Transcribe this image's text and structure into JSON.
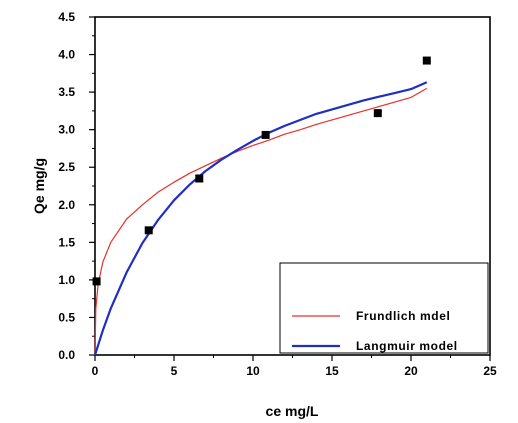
{
  "chart_data": {
    "type": "scatter",
    "xlabel": "ce mg/L",
    "ylabel": "Qe mg/g",
    "xlim": [
      0,
      25
    ],
    "ylim": [
      0,
      4.5
    ],
    "xticks": [
      0,
      5,
      10,
      15,
      20,
      25
    ],
    "yticks": [
      0.0,
      0.5,
      1.0,
      1.5,
      2.0,
      2.5,
      3.0,
      3.5,
      4.0,
      4.5
    ],
    "ytick_labels": [
      "0.0",
      "0.5",
      "1.0",
      "1.5",
      "2.0",
      "2.5",
      "3.0",
      "3.5",
      "4.0",
      "4.5"
    ],
    "grid": false,
    "legend_position": "bottom-right",
    "series": [
      {
        "kind": "points",
        "marker": "square",
        "color": "#000000",
        "x": [
          0.1,
          3.4,
          6.6,
          10.8,
          17.9,
          21.0
        ],
        "y": [
          0.98,
          1.66,
          2.35,
          2.93,
          3.22,
          3.92
        ]
      },
      {
        "kind": "line",
        "name": "Frundlich mdel",
        "color": "#e8302a",
        "x": [
          0,
          0.05,
          0.2,
          0.5,
          1,
          2,
          3,
          4,
          5,
          6,
          7,
          8,
          9,
          10,
          11,
          12,
          13,
          14,
          15,
          16,
          17,
          18,
          19,
          20,
          21
        ],
        "y": [
          0,
          0.62,
          0.95,
          1.24,
          1.5,
          1.81,
          2.0,
          2.17,
          2.3,
          2.42,
          2.52,
          2.62,
          2.71,
          2.79,
          2.86,
          2.94,
          3.0,
          3.07,
          3.13,
          3.19,
          3.25,
          3.31,
          3.37,
          3.43,
          3.55
        ]
      },
      {
        "kind": "line",
        "name": "Langmuir model",
        "color": "#1f2fc4",
        "x": [
          0,
          0.5,
          1,
          2,
          3,
          4,
          5,
          6,
          7,
          8,
          9,
          10,
          11,
          12,
          13,
          14,
          15,
          16,
          17,
          18,
          19,
          20,
          21
        ],
        "y": [
          0,
          0.33,
          0.62,
          1.1,
          1.49,
          1.8,
          2.06,
          2.27,
          2.45,
          2.6,
          2.73,
          2.85,
          2.96,
          3.05,
          3.13,
          3.21,
          3.27,
          3.33,
          3.39,
          3.44,
          3.49,
          3.54,
          3.63
        ]
      }
    ]
  }
}
